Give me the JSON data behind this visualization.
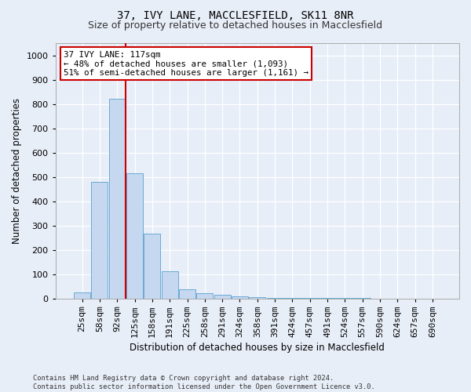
{
  "title": "37, IVY LANE, MACCLESFIELD, SK11 8NR",
  "subtitle": "Size of property relative to detached houses in Macclesfield",
  "xlabel": "Distribution of detached houses by size in Macclesfield",
  "ylabel": "Number of detached properties",
  "footer_line1": "Contains HM Land Registry data © Crown copyright and database right 2024.",
  "footer_line2": "Contains public sector information licensed under the Open Government Licence v3.0.",
  "bar_labels": [
    "25sqm",
    "58sqm",
    "92sqm",
    "125sqm",
    "158sqm",
    "191sqm",
    "225sqm",
    "258sqm",
    "291sqm",
    "324sqm",
    "358sqm",
    "391sqm",
    "424sqm",
    "457sqm",
    "491sqm",
    "524sqm",
    "557sqm",
    "590sqm",
    "624sqm",
    "657sqm",
    "690sqm"
  ],
  "bar_values": [
    25,
    480,
    820,
    515,
    265,
    110,
    38,
    20,
    15,
    8,
    5,
    3,
    2,
    2,
    1,
    1,
    1,
    0,
    0,
    0,
    0
  ],
  "bar_color": "#c5d8f0",
  "bar_edge_color": "#6aaad4",
  "vline_color": "#cc0000",
  "annotation_text": "37 IVY LANE: 117sqm\n← 48% of detached houses are smaller (1,093)\n51% of semi-detached houses are larger (1,161) →",
  "annotation_box_color": "white",
  "annotation_box_edge": "#cc0000",
  "ylim": [
    0,
    1050
  ],
  "yticks": [
    0,
    100,
    200,
    300,
    400,
    500,
    600,
    700,
    800,
    900,
    1000
  ],
  "background_color": "#e8eef8",
  "grid_color": "white",
  "title_fontsize": 10,
  "subtitle_fontsize": 9,
  "xlabel_fontsize": 8.5,
  "ylabel_fontsize": 8.5,
  "tick_fontsize": 8,
  "annot_fontsize": 7.8
}
